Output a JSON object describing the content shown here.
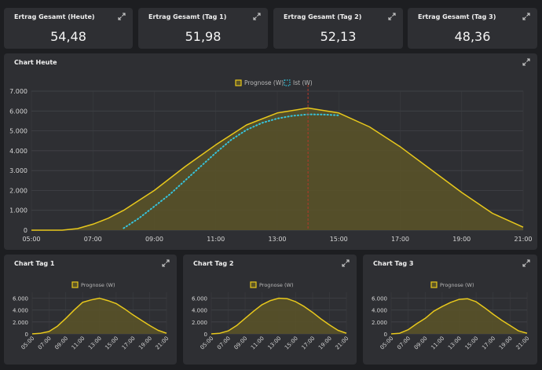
{
  "kpis": [
    {
      "title": "Ertrag Gesamt (Heute)",
      "value": "54,48"
    },
    {
      "title": "Ertrag Gesamt (Tag 1)",
      "value": "51,98"
    },
    {
      "title": "Ertrag Gesamt (Tag 2)",
      "value": "52,13"
    },
    {
      "title": "Ertrag Gesamt (Tag 3)",
      "value": "48,36"
    }
  ],
  "main_chart_title": "Chart Heute",
  "small_chart_titles": [
    "Chart Tag 1",
    "Chart Tag 2",
    "Chart Tag 3"
  ],
  "colors": {
    "prognose": "#e8c81c",
    "ist": "#36c3dc",
    "now_line": "#b5392a",
    "fill": "#5b5428"
  },
  "icons": {
    "expand": "expand-icon"
  },
  "chart_data": [
    {
      "type": "area",
      "title": "",
      "legend": [
        "Prognose (W)",
        "Ist (W)"
      ],
      "legend_position": "top-center",
      "x_ticks": [
        "05:00",
        "07:00",
        "09:00",
        "11:00",
        "13:00",
        "15:00",
        "17:00",
        "19:00",
        "21:00"
      ],
      "y_ticks": [
        "0",
        "1.000",
        "2.000",
        "3.000",
        "4.000",
        "5.000",
        "6.000",
        "7.000"
      ],
      "ylim": [
        0,
        7000
      ],
      "grid": true,
      "now_marker": 14.0,
      "series": [
        {
          "name": "Prognose (W)",
          "style": "area-line",
          "x": [
            5.0,
            6.0,
            6.5,
            7.0,
            7.5,
            8.0,
            9.0,
            10.0,
            11.0,
            12.0,
            13.0,
            14.0,
            15.0,
            16.0,
            17.0,
            18.0,
            19.0,
            20.0,
            21.0
          ],
          "y": [
            0,
            0,
            80,
            300,
            600,
            1000,
            2000,
            3200,
            4300,
            5300,
            5900,
            6150,
            5900,
            5200,
            4200,
            3050,
            1900,
            850,
            150
          ]
        },
        {
          "name": "Ist (W)",
          "style": "dotted",
          "x": [
            8.0,
            8.5,
            9.0,
            9.5,
            10.0,
            10.5,
            11.0,
            11.5,
            12.0,
            12.5,
            13.0,
            13.5,
            14.0,
            14.5,
            15.0
          ],
          "y": [
            100,
            600,
            1200,
            1800,
            2500,
            3200,
            3900,
            4550,
            5050,
            5400,
            5620,
            5760,
            5830,
            5820,
            5780
          ]
        }
      ]
    },
    {
      "type": "area",
      "title": "",
      "legend": [
        "Prognose (W)"
      ],
      "x_ticks": [
        "05:00",
        "07:00",
        "09:00",
        "11:00",
        "13:00",
        "15:00",
        "17:00",
        "19:00",
        "21:00"
      ],
      "y_ticks": [
        "0",
        "2.000",
        "4.000",
        "6.000"
      ],
      "ylim": [
        0,
        7000
      ],
      "grid": true,
      "series": [
        {
          "name": "Prognose (W)",
          "x": [
            5.0,
            6.0,
            7.0,
            8.0,
            9.0,
            10.0,
            11.0,
            12.0,
            13.0,
            14.0,
            15.0,
            16.0,
            17.0,
            18.0,
            19.0,
            20.0,
            21.0
          ],
          "y": [
            0,
            100,
            400,
            1300,
            2600,
            4000,
            5300,
            5700,
            6000,
            5600,
            5100,
            4200,
            3200,
            2300,
            1400,
            600,
            100
          ]
        }
      ]
    },
    {
      "type": "area",
      "title": "",
      "legend": [
        "Prognose (W)"
      ],
      "x_ticks": [
        "05:00",
        "07:00",
        "09:00",
        "11:00",
        "13:00",
        "15:00",
        "17:00",
        "19:00",
        "21:00"
      ],
      "y_ticks": [
        "0",
        "2.000",
        "4.000",
        "6.000"
      ],
      "ylim": [
        0,
        7000
      ],
      "grid": true,
      "series": [
        {
          "name": "Prognose (W)",
          "x": [
            5.0,
            6.0,
            7.0,
            8.0,
            9.0,
            10.0,
            11.0,
            12.0,
            13.0,
            14.0,
            15.0,
            16.0,
            17.0,
            18.0,
            19.0,
            20.0,
            21.0
          ],
          "y": [
            0,
            100,
            500,
            1400,
            2600,
            3800,
            4900,
            5600,
            6000,
            5900,
            5400,
            4600,
            3600,
            2500,
            1500,
            600,
            100
          ]
        }
      ]
    },
    {
      "type": "area",
      "title": "",
      "legend": [
        "Prognose (W)"
      ],
      "x_ticks": [
        "05:00",
        "07:00",
        "09:00",
        "11:00",
        "13:00",
        "15:00",
        "17:00",
        "19:00",
        "21:00"
      ],
      "y_ticks": [
        "0",
        "2.000",
        "4.000",
        "6.000"
      ],
      "ylim": [
        0,
        7000
      ],
      "grid": true,
      "series": [
        {
          "name": "Prognose (W)",
          "x": [
            5.0,
            6.0,
            7.0,
            8.0,
            9.0,
            10.0,
            11.0,
            12.0,
            13.0,
            14.0,
            15.0,
            16.0,
            17.0,
            18.0,
            19.0,
            20.0,
            21.0
          ],
          "y": [
            0,
            100,
            700,
            1700,
            2600,
            3800,
            4600,
            5300,
            5800,
            5900,
            5400,
            4400,
            3300,
            2300,
            1400,
            500,
            100
          ]
        }
      ]
    }
  ]
}
